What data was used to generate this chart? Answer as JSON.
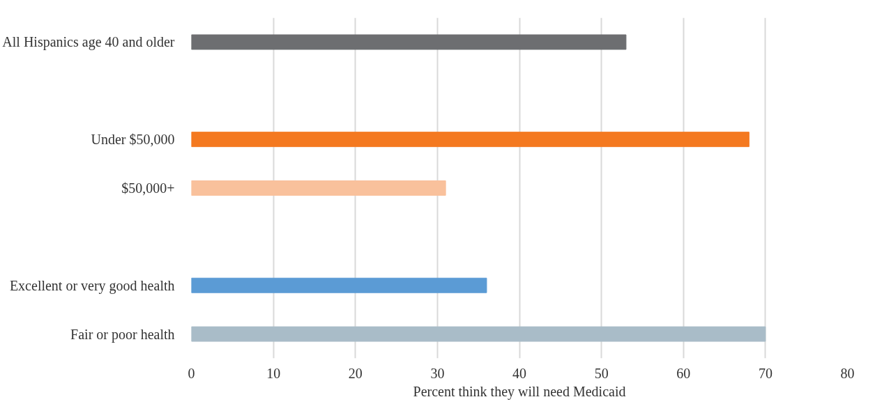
{
  "chart_data": {
    "type": "bar",
    "orientation": "horizontal",
    "xlabel": "Percent think they will need Medicaid",
    "categories": [
      "All Hispanics age 40 and older",
      null,
      "Under $50,000",
      "$50,000+",
      null,
      "Excellent or very good health",
      "Fair or poor health"
    ],
    "values": [
      53,
      null,
      68,
      31,
      null,
      36,
      70
    ],
    "colors": [
      "#6d6e71",
      "#f47920",
      "#f47920",
      "#f9c19c",
      "#5b9bd5",
      "#5b9bd5",
      "#a9bcc8"
    ],
    "xlim": [
      0,
      80
    ],
    "xticks": [
      0,
      10,
      20,
      30,
      40,
      50,
      60,
      70,
      80
    ],
    "grid": "x"
  }
}
